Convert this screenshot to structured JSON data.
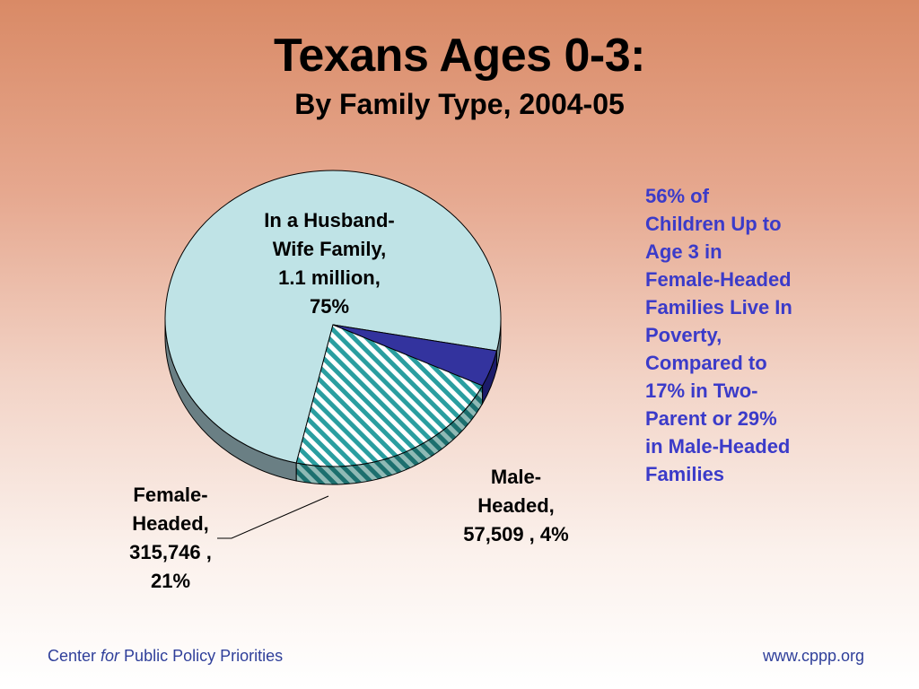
{
  "title": "Texans Ages 0-3:",
  "subtitle": "By Family Type, 2004-05",
  "chart_data": {
    "type": "pie",
    "title": "Texans Ages 0-3:",
    "subtitle": "By Family Type, 2004-05",
    "style": "3d-tilted",
    "slices": [
      {
        "name": "In a Husband-Wife Family",
        "value_text": "1.1 million",
        "percent": 75,
        "color": "#bfe3e6",
        "label": "In a Husband-\nWife Family,\n1.1 million,\n75%"
      },
      {
        "name": "Female-Headed",
        "value": 315746,
        "percent": 21,
        "color": "#2a9ea0",
        "pattern": "diagonal-stripes",
        "label": "Female-\nHeaded,\n315,746 ,\n21%"
      },
      {
        "name": "Male-Headed",
        "value": 57509,
        "percent": 4,
        "color": "#33339e",
        "label": "Male-\nHeaded,\n57,509 , 4%"
      }
    ]
  },
  "callout": "56% of\nChildren Up to\nAge 3 in\nFemale-Headed\nFamilies Live In\nPoverty,\nCompared to\n17% in Two-\nParent or 29%\nin Male-Headed\nFamilies",
  "footer": {
    "org_part1": "Center ",
    "org_italic": "for",
    "org_part2": " Public Policy Priorities",
    "url": "www.cppp.org"
  },
  "colors": {
    "callout_text": "#3b3bc9",
    "footer_text": "#2f3f9a",
    "male_slice": "#33339e",
    "female_stripe": "#2a9ea0",
    "husband_wife_slice": "#bfe3e6"
  }
}
